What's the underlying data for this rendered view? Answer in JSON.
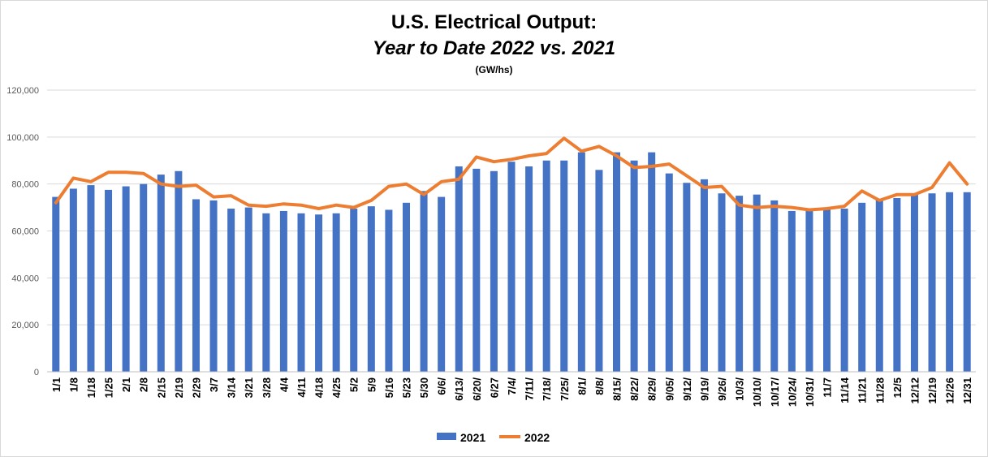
{
  "title": "U.S. Electrical Output:",
  "subtitle": "Year to Date 2022 vs. 2021",
  "unit_label": "(GW/hs)",
  "colors": {
    "bar_2021": "#4472C4",
    "line_2022": "#ED7D31",
    "grid": "#d9d9d9"
  },
  "chart_data": {
    "type": "bar",
    "categories": [
      "1/1",
      "1/8",
      "1/18",
      "1/25",
      "2/1",
      "2/8",
      "2/15",
      "2/19",
      "2/29",
      "3/7",
      "3/14",
      "3/21",
      "3/28",
      "4/4",
      "4/11",
      "4/18",
      "4/25",
      "5/2",
      "5/9",
      "5/16",
      "5/23",
      "5/30",
      "6/6/",
      "6/13/",
      "6/20/",
      "6/27",
      "7/4/",
      "7/11/",
      "7/18/",
      "7/25/",
      "8/1/",
      "8/8/",
      "8/15/",
      "8/22/",
      "8/29/",
      "9/05/",
      "9/12/",
      "9/19/",
      "9/26/",
      "10/3/",
      "10/10/",
      "10/17/",
      "10/24/",
      "10/31/",
      "11/7",
      "11/14",
      "11/21",
      "11/28",
      "12/5",
      "12/12",
      "12/19",
      "12/26",
      "12/31"
    ],
    "series": [
      {
        "name": "2021",
        "type": "bar",
        "values": [
          74500,
          78000,
          79500,
          77500,
          79000,
          80000,
          84000,
          85500,
          73500,
          73000,
          69500,
          70000,
          67500,
          68500,
          67500,
          67000,
          67500,
          69500,
          70500,
          69000,
          72000,
          77000,
          74500,
          87500,
          86500,
          85500,
          89500,
          87500,
          90000,
          90000,
          93500,
          86000,
          93500,
          90000,
          93500,
          84500,
          80500,
          82000,
          76000,
          75000,
          75500,
          73000,
          68500,
          68500,
          69000,
          69500,
          72000,
          73500,
          74000,
          76000,
          76000,
          76500,
          76500
        ]
      },
      {
        "name": "2022",
        "type": "line",
        "values": [
          72000,
          82500,
          81000,
          85000,
          85000,
          84500,
          80000,
          79000,
          79500,
          74500,
          75000,
          71000,
          70500,
          71500,
          71000,
          69500,
          71000,
          70000,
          73000,
          79000,
          80000,
          75500,
          81000,
          82000,
          91500,
          89500,
          90500,
          92000,
          93000,
          99500,
          94000,
          96000,
          92000,
          87000,
          87500,
          88500,
          83500,
          78500,
          79000,
          71000,
          70000,
          70500,
          70000,
          69000,
          69500,
          70500,
          77000,
          73000,
          75500,
          75500,
          78500,
          89000,
          80000
        ]
      }
    ],
    "ylim": [
      0,
      120000
    ],
    "yticks": [
      "0",
      "20,000",
      "40,000",
      "60,000",
      "80,000",
      "100,000",
      "120,000"
    ],
    "grid": true,
    "legend": "bottom-center"
  }
}
